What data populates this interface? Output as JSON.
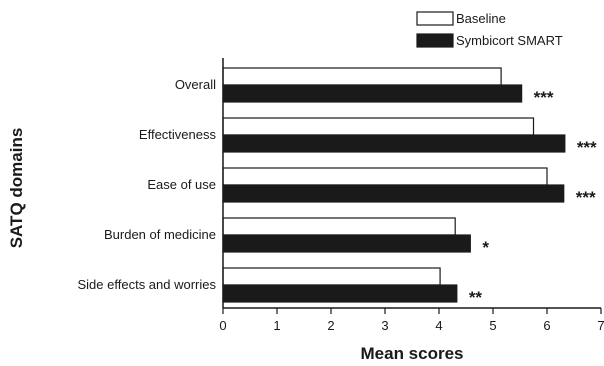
{
  "chart_data": {
    "type": "bar",
    "orientation": "horizontal",
    "categories": [
      "Overall",
      "Effectiveness",
      "Ease of use",
      "Burden of medicine",
      "Side effects and worries"
    ],
    "series": [
      {
        "name": "Baseline",
        "values": [
          5.15,
          5.75,
          6.0,
          4.3,
          4.02
        ],
        "color": "#ffffff"
      },
      {
        "name": "Symbicort SMART",
        "values": [
          5.53,
          6.33,
          6.31,
          4.58,
          4.33
        ],
        "color": "#1a1a1a"
      }
    ],
    "significance": [
      "***",
      "***",
      "***",
      "*",
      "**"
    ],
    "xlabel": "Mean scores",
    "ylabel": "SATQ domains",
    "xlim": [
      0,
      7
    ],
    "xticks": [
      "0",
      "1",
      "2",
      "3",
      "4",
      "5",
      "6",
      "7"
    ],
    "legend_position": "top-right",
    "grid": false
  }
}
